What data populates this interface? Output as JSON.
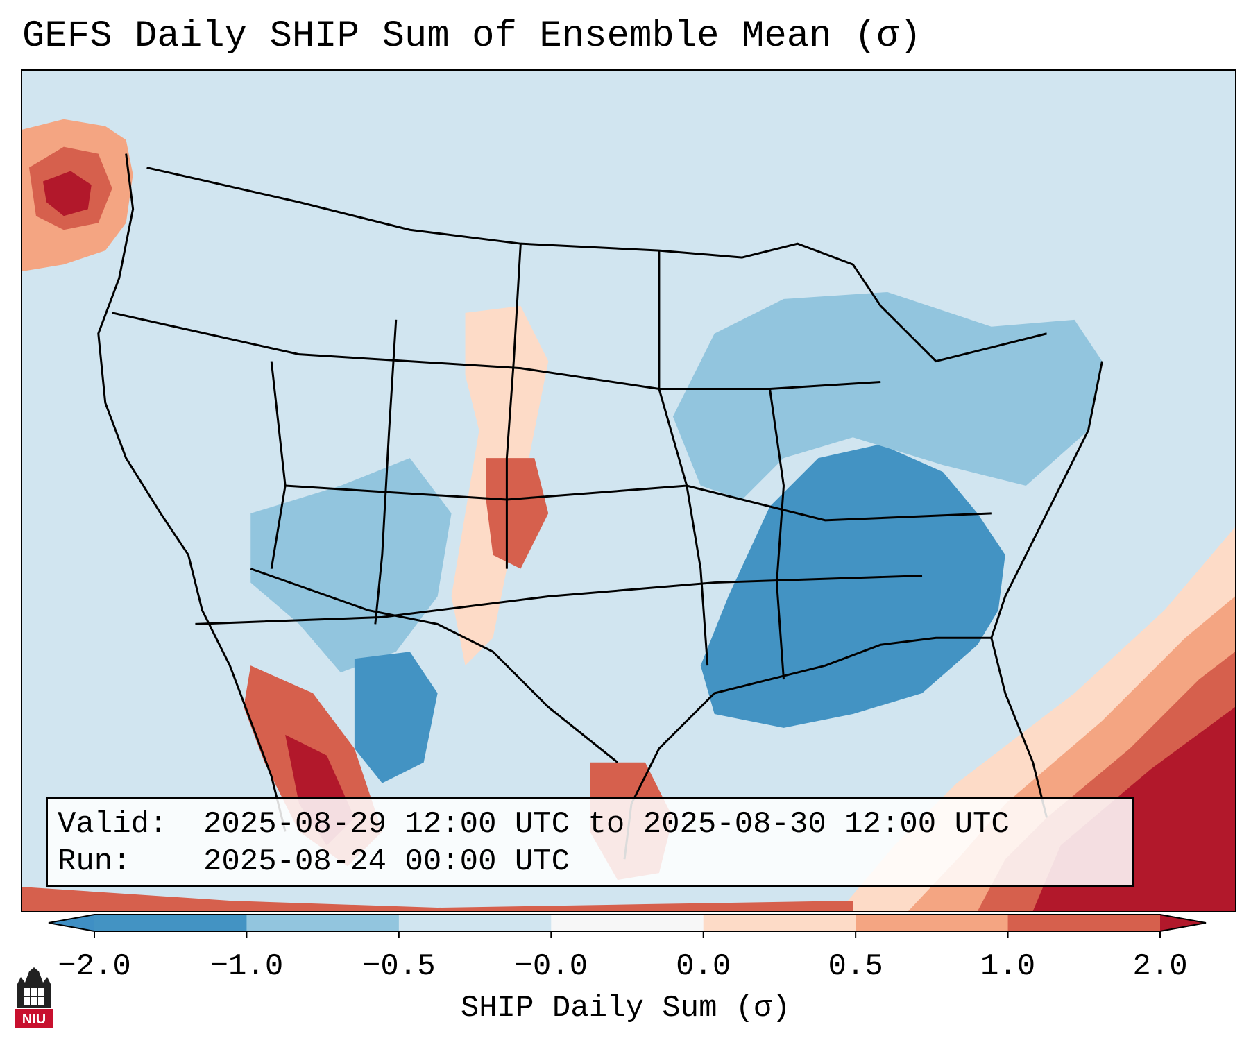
{
  "title": "GEFS Daily SHIP Sum of Ensemble Mean (σ)",
  "info": {
    "valid_label": "Valid:",
    "valid_value": "2025-08-29 12:00 UTC to 2025-08-30 12:00 UTC",
    "run_label": "Run:",
    "run_value": "2025-08-24 00:00 UTC"
  },
  "colorbar": {
    "label": "SHIP Daily Sum (σ)",
    "ticks": [
      "−2.0",
      "−1.0",
      "−0.5",
      "−0.0",
      "0.0",
      "0.5",
      "1.0",
      "2.0"
    ],
    "colors": [
      "#3f8fc4",
      "#92c4de",
      "#d2e5f0",
      "#f8f8f8",
      "#fddbc7",
      "#f4a582",
      "#d6604d",
      "#b2182b"
    ],
    "extend": "both"
  },
  "legend_colors": {
    "strong_negative": "#4393c3",
    "moderate_negative": "#92c5de",
    "weak_negative": "#d1e5f0",
    "weak_positive": "#fddbc7",
    "moderate_positive": "#f4a582",
    "strong_positive": "#d6604d",
    "extreme_positive": "#b2182b"
  },
  "logo": {
    "text": "NIU",
    "name": "niu-logo"
  }
}
